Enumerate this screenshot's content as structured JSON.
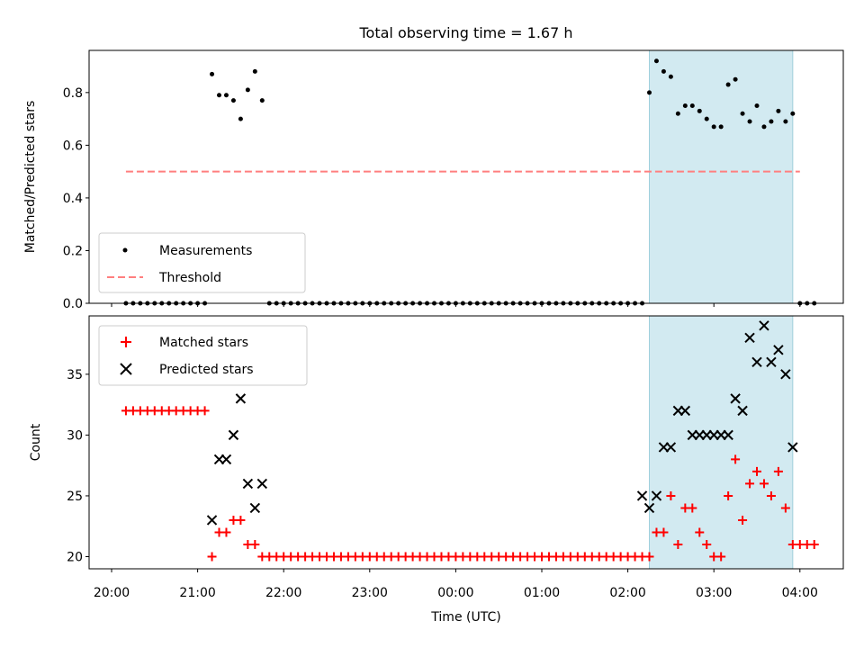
{
  "figure_title": "Total observing time = 1.67 h",
  "chart_data": [
    {
      "type": "scatter",
      "ylabel": "Matched/Predicted stars",
      "ylim": [
        0.0,
        0.96
      ],
      "yticks": [
        "0.0",
        "0.2",
        "0.4",
        "0.6",
        "0.8"
      ],
      "legend_position": "lower-left",
      "highlight_span": {
        "x_start": "02:15",
        "x_end": "03:55",
        "color": "#add8e6"
      },
      "series": [
        {
          "name": "Measurements",
          "marker": "dot",
          "color": "#000000",
          "x": [
            "20:10",
            "20:15",
            "20:20",
            "20:25",
            "20:30",
            "20:35",
            "20:40",
            "20:45",
            "20:50",
            "20:55",
            "21:00",
            "21:05",
            "21:10",
            "21:15",
            "21:20",
            "21:25",
            "21:30",
            "21:35",
            "21:40",
            "21:45",
            "21:50",
            "21:55",
            "22:00",
            "22:05",
            "22:10",
            "22:15",
            "22:20",
            "22:25",
            "22:30",
            "22:35",
            "22:40",
            "22:45",
            "22:50",
            "22:55",
            "23:00",
            "23:05",
            "23:10",
            "23:15",
            "23:20",
            "23:25",
            "23:30",
            "23:35",
            "23:40",
            "23:45",
            "23:50",
            "23:55",
            "00:00",
            "00:05",
            "00:10",
            "00:15",
            "00:20",
            "00:25",
            "00:30",
            "00:35",
            "00:40",
            "00:45",
            "00:50",
            "00:55",
            "01:00",
            "01:05",
            "01:10",
            "01:15",
            "01:20",
            "01:25",
            "01:30",
            "01:35",
            "01:40",
            "01:45",
            "01:50",
            "01:55",
            "02:00",
            "02:05",
            "02:10",
            "02:15",
            "02:20",
            "02:25",
            "02:30",
            "02:35",
            "02:40",
            "02:45",
            "02:50",
            "02:55",
            "03:00",
            "03:05",
            "03:10",
            "03:15",
            "03:20",
            "03:25",
            "03:30",
            "03:35",
            "03:40",
            "03:45",
            "03:50",
            "03:55",
            "04:00",
            "04:05",
            "04:10"
          ],
          "y": [
            0,
            0,
            0,
            0,
            0,
            0,
            0,
            0,
            0,
            0,
            0,
            0,
            0.87,
            0.79,
            0.79,
            0.77,
            0.7,
            0.81,
            0.88,
            0.77,
            0,
            0,
            0,
            0,
            0,
            0,
            0,
            0,
            0,
            0,
            0,
            0,
            0,
            0,
            0,
            0,
            0,
            0,
            0,
            0,
            0,
            0,
            0,
            0,
            0,
            0,
            0,
            0,
            0,
            0,
            0,
            0,
            0,
            0,
            0,
            0,
            0,
            0,
            0,
            0,
            0,
            0,
            0,
            0,
            0,
            0,
            0,
            0,
            0,
            0,
            0,
            0,
            0,
            0.8,
            0.92,
            0.88,
            0.86,
            0.72,
            0.75,
            0.75,
            0.73,
            0.7,
            0.67,
            0.67,
            0.83,
            0.85,
            0.72,
            0.69,
            0.75,
            0.67,
            0.69,
            0.73,
            0.69,
            0.72,
            0,
            0,
            0
          ]
        },
        {
          "name": "Threshold",
          "marker": "dashed-line",
          "color": "#ff7f7f",
          "x": [
            "20:10",
            "04:00"
          ],
          "y": [
            0.5,
            0.5
          ]
        }
      ]
    },
    {
      "type": "scatter",
      "xlabel": "Time (UTC)",
      "ylabel": "Count",
      "ylim": [
        19.0,
        39.8
      ],
      "yticks": [
        "20",
        "25",
        "30",
        "35"
      ],
      "xticks": [
        "20:00",
        "21:00",
        "22:00",
        "23:00",
        "00:00",
        "01:00",
        "02:00",
        "03:00",
        "04:00"
      ],
      "legend_position": "upper-left",
      "highlight_span": {
        "x_start": "02:15",
        "x_end": "03:55",
        "color": "#add8e6"
      },
      "series": [
        {
          "name": "Matched stars",
          "marker": "plus",
          "color": "#ff0000",
          "x": [
            "20:10",
            "20:15",
            "20:20",
            "20:25",
            "20:30",
            "20:35",
            "20:40",
            "20:45",
            "20:50",
            "20:55",
            "21:00",
            "21:05",
            "21:10",
            "21:15",
            "21:20",
            "21:25",
            "21:30",
            "21:35",
            "21:40",
            "21:45",
            "21:50",
            "21:55",
            "22:00",
            "22:05",
            "22:10",
            "22:15",
            "22:20",
            "22:25",
            "22:30",
            "22:35",
            "22:40",
            "22:45",
            "22:50",
            "22:55",
            "23:00",
            "23:05",
            "23:10",
            "23:15",
            "23:20",
            "23:25",
            "23:30",
            "23:35",
            "23:40",
            "23:45",
            "23:50",
            "23:55",
            "00:00",
            "00:05",
            "00:10",
            "00:15",
            "00:20",
            "00:25",
            "00:30",
            "00:35",
            "00:40",
            "00:45",
            "00:50",
            "00:55",
            "01:00",
            "01:05",
            "01:10",
            "01:15",
            "01:20",
            "01:25",
            "01:30",
            "01:35",
            "01:40",
            "01:45",
            "01:50",
            "01:55",
            "02:00",
            "02:05",
            "02:10",
            "02:15",
            "02:20",
            "02:25",
            "02:30",
            "02:35",
            "02:40",
            "02:45",
            "02:50",
            "02:55",
            "03:00",
            "03:05",
            "03:10",
            "03:15",
            "03:20",
            "03:25",
            "03:30",
            "03:35",
            "03:40",
            "03:45",
            "03:50",
            "03:55",
            "04:00",
            "04:05",
            "04:10"
          ],
          "y": [
            32,
            32,
            32,
            32,
            32,
            32,
            32,
            32,
            32,
            32,
            32,
            32,
            20,
            22,
            22,
            23,
            23,
            21,
            21,
            20,
            20,
            20,
            20,
            20,
            20,
            20,
            20,
            20,
            20,
            20,
            20,
            20,
            20,
            20,
            20,
            20,
            20,
            20,
            20,
            20,
            20,
            20,
            20,
            20,
            20,
            20,
            20,
            20,
            20,
            20,
            20,
            20,
            20,
            20,
            20,
            20,
            20,
            20,
            20,
            20,
            20,
            20,
            20,
            20,
            20,
            20,
            20,
            20,
            20,
            20,
            20,
            20,
            20,
            20,
            22,
            22,
            25,
            21,
            24,
            24,
            22,
            21,
            20,
            20,
            25,
            28,
            23,
            26,
            27,
            26,
            25,
            27,
            24,
            21,
            21,
            21,
            21
          ]
        },
        {
          "name": "Predicted stars",
          "marker": "x",
          "color": "#000000",
          "x": [
            "21:10",
            "21:15",
            "21:20",
            "21:25",
            "21:30",
            "21:35",
            "21:40",
            "21:45",
            "02:10",
            "02:15",
            "02:20",
            "02:25",
            "02:30",
            "02:35",
            "02:40",
            "02:45",
            "02:50",
            "02:55",
            "03:00",
            "03:05",
            "03:10",
            "03:15",
            "03:20",
            "03:25",
            "03:30",
            "03:35",
            "03:40",
            "03:45",
            "03:50",
            "03:55"
          ],
          "y": [
            23,
            28,
            28,
            30,
            33,
            26,
            24,
            26,
            25,
            24,
            25,
            29,
            29,
            32,
            32,
            30,
            30,
            30,
            30,
            30,
            30,
            33,
            32,
            38,
            36,
            39,
            36,
            37,
            35,
            29
          ]
        }
      ]
    }
  ]
}
